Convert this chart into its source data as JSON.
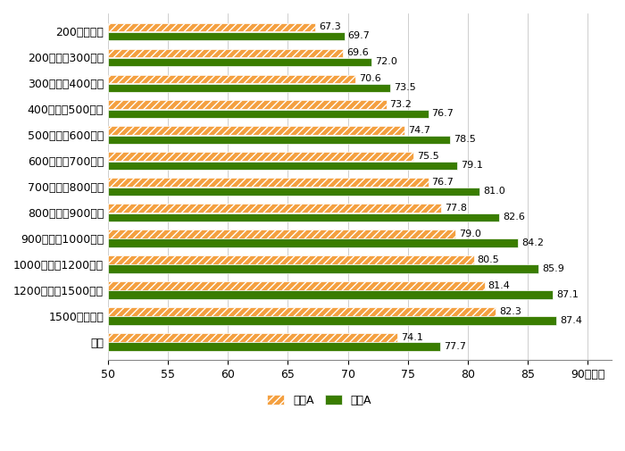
{
  "categories": [
    "200万円未満",
    "200万円～300万円",
    "300万円～400万円",
    "400万円～500万円",
    "500万円～600万円",
    "600万円～700万円",
    "700万円～800万円",
    "800万円～900万円",
    "900万円～1000万円",
    "1000万円～1200万円",
    "1200万円～1500万円",
    "1500万円以上",
    "不明"
  ],
  "kokugo": [
    67.3,
    69.6,
    70.6,
    73.2,
    74.7,
    75.5,
    76.7,
    77.8,
    79.0,
    80.5,
    81.4,
    82.3,
    74.1
  ],
  "sansu": [
    69.7,
    72.0,
    73.5,
    76.7,
    78.5,
    79.1,
    81.0,
    82.6,
    84.2,
    85.9,
    87.1,
    87.4,
    77.7
  ],
  "kokugo_color": "#F4A040",
  "sansu_color": "#3A7D00",
  "xlim": [
    50,
    92
  ],
  "xlim_display": [
    50,
    90
  ],
  "xticks": [
    50,
    55,
    60,
    65,
    70,
    75,
    80,
    85,
    90
  ],
  "xlabel": "（点）",
  "bar_height": 0.32,
  "bar_gap": 0.03,
  "fontsize_label": 9,
  "fontsize_value": 8,
  "fontsize_axis": 9,
  "legend_kokugo": "国語A",
  "legend_sansu": "算数A",
  "background_color": "#ffffff",
  "hatch_pattern": "////"
}
